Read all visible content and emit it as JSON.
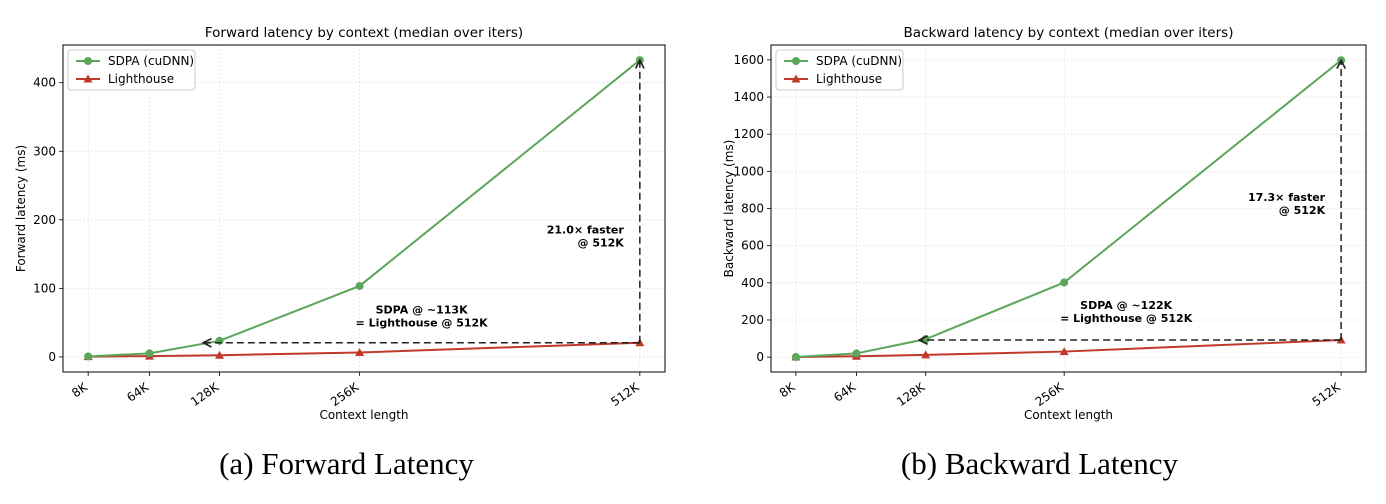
{
  "panels": [
    {
      "caption": "(a) Forward Latency",
      "chart_data": {
        "type": "line",
        "title": "Forward latency by context (median over iters)",
        "xlabel": "Context length",
        "ylabel": "Forward latency (ms)",
        "x_ticks": [
          "8K",
          "64K",
          "128K",
          "256K",
          "512K"
        ],
        "x_values": [
          8,
          64,
          128,
          256,
          512
        ],
        "x_unit": "K tokens",
        "xlim": [
          -15,
          535
        ],
        "ylim": [
          -22,
          455
        ],
        "y_ticks": [
          0,
          100,
          200,
          300,
          400
        ],
        "grid": true,
        "legend_position": "upper-left",
        "series": [
          {
            "name": "SDPA (cuDNN)",
            "color": "#5aa65a",
            "marker": "circle",
            "values": [
              0.7,
              5.2,
              23.5,
              103.5,
              433
            ]
          },
          {
            "name": "Lighthouse",
            "color": "#c0392b",
            "marker": "triangle",
            "values": [
              0.4,
              1.2,
              2.5,
              6.5,
              20.6
            ]
          }
        ],
        "annotations": [
          {
            "lines": [
              "21.0× faster",
              "@ 512K"
            ],
            "anchor": [
              512,
              180
            ],
            "align": "end"
          },
          {
            "lines": [
              "SDPA @ ~113K",
              "= Lighthouse @ 512K"
            ],
            "anchor": [
              256,
              63
            ],
            "align": "middle"
          }
        ],
        "arrows": [
          {
            "from": [
              512,
              20.6
            ],
            "to": [
              512,
              433
            ]
          },
          {
            "from": [
              512,
              20.6
            ],
            "to": [
              113,
              20.6
            ]
          }
        ]
      }
    },
    {
      "caption": "(b) Backward Latency",
      "chart_data": {
        "type": "line",
        "title": "Backward latency by context (median over iters)",
        "xlabel": "Context length",
        "ylabel": "Backward latency (ms)",
        "x_ticks": [
          "8K",
          "64K",
          "128K",
          "256K",
          "512K"
        ],
        "x_values": [
          8,
          64,
          128,
          256,
          512
        ],
        "x_unit": "K tokens",
        "xlim": [
          -15,
          535
        ],
        "ylim": [
          -80,
          1680
        ],
        "y_ticks": [
          0,
          200,
          400,
          600,
          800,
          1000,
          1200,
          1400,
          1600
        ],
        "grid": true,
        "legend_position": "upper-left",
        "series": [
          {
            "name": "SDPA (cuDNN)",
            "color": "#5aa65a",
            "marker": "circle",
            "values": [
              1,
              20,
              97,
              402,
              1598
            ]
          },
          {
            "name": "Lighthouse",
            "color": "#c0392b",
            "marker": "triangle",
            "values": [
              0.5,
              5,
              12,
              30,
              92
            ]
          }
        ],
        "annotations": [
          {
            "lines": [
              "17.3× faster",
              "@ 512K"
            ],
            "anchor": [
              512,
              840
            ],
            "align": "end"
          },
          {
            "lines": [
              "SDPA @ ~122K",
              "= Lighthouse @ 512K"
            ],
            "anchor": [
              256,
              260
            ],
            "align": "middle"
          }
        ],
        "arrows": [
          {
            "from": [
              512,
              92
            ],
            "to": [
              512,
              1598
            ]
          },
          {
            "from": [
              512,
              92
            ],
            "to": [
              122,
              92
            ]
          }
        ]
      }
    }
  ]
}
